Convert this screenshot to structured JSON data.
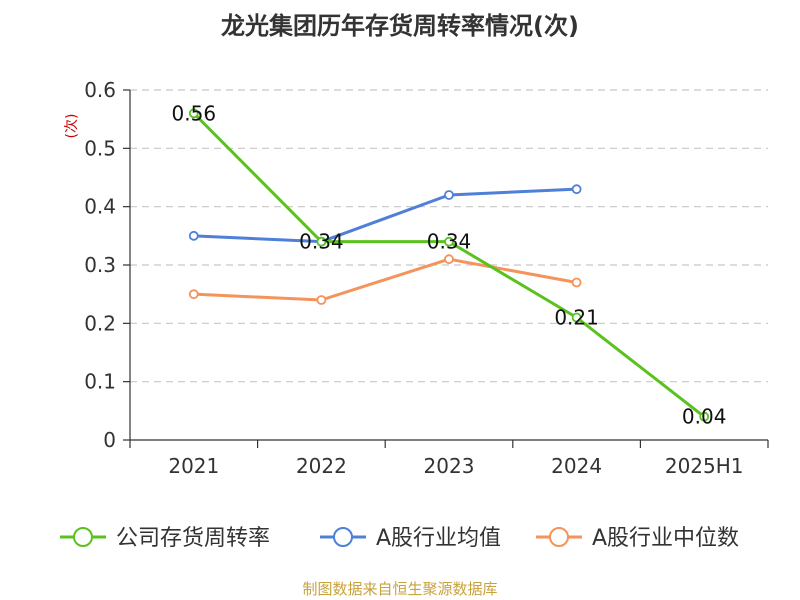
{
  "chart_data": {
    "type": "line",
    "title": "龙光集团历年存货周转率情况(次)",
    "ylabel": "(次)",
    "xlabel": "",
    "categories": [
      "2021",
      "2022",
      "2023",
      "2024",
      "2025H1"
    ],
    "ylim": [
      0,
      0.6
    ],
    "yticks": [
      0,
      0.1,
      0.2,
      0.3,
      0.4,
      0.5,
      0.6
    ],
    "ytick_labels": [
      "0",
      "0.1",
      "0.2",
      "0.3",
      "0.4",
      "0.5",
      "0.6"
    ],
    "grid": true,
    "legend_position": "bottom",
    "series": [
      {
        "name": "公司存货周转率",
        "values": [
          0.56,
          0.34,
          0.34,
          0.21,
          0.04
        ],
        "color": "#5ac21f",
        "data_labels": [
          "0.56",
          "0.34",
          "0.34",
          "0.21",
          "0.04"
        ]
      },
      {
        "name": "A股行业均值",
        "values": [
          0.35,
          0.34,
          0.42,
          0.43,
          null
        ],
        "color": "#4f7fd8"
      },
      {
        "name": "A股行业中位数",
        "values": [
          0.25,
          0.24,
          0.31,
          0.27,
          null
        ],
        "color": "#f4935a"
      }
    ]
  },
  "source": "制图数据来自恒生聚源数据库"
}
